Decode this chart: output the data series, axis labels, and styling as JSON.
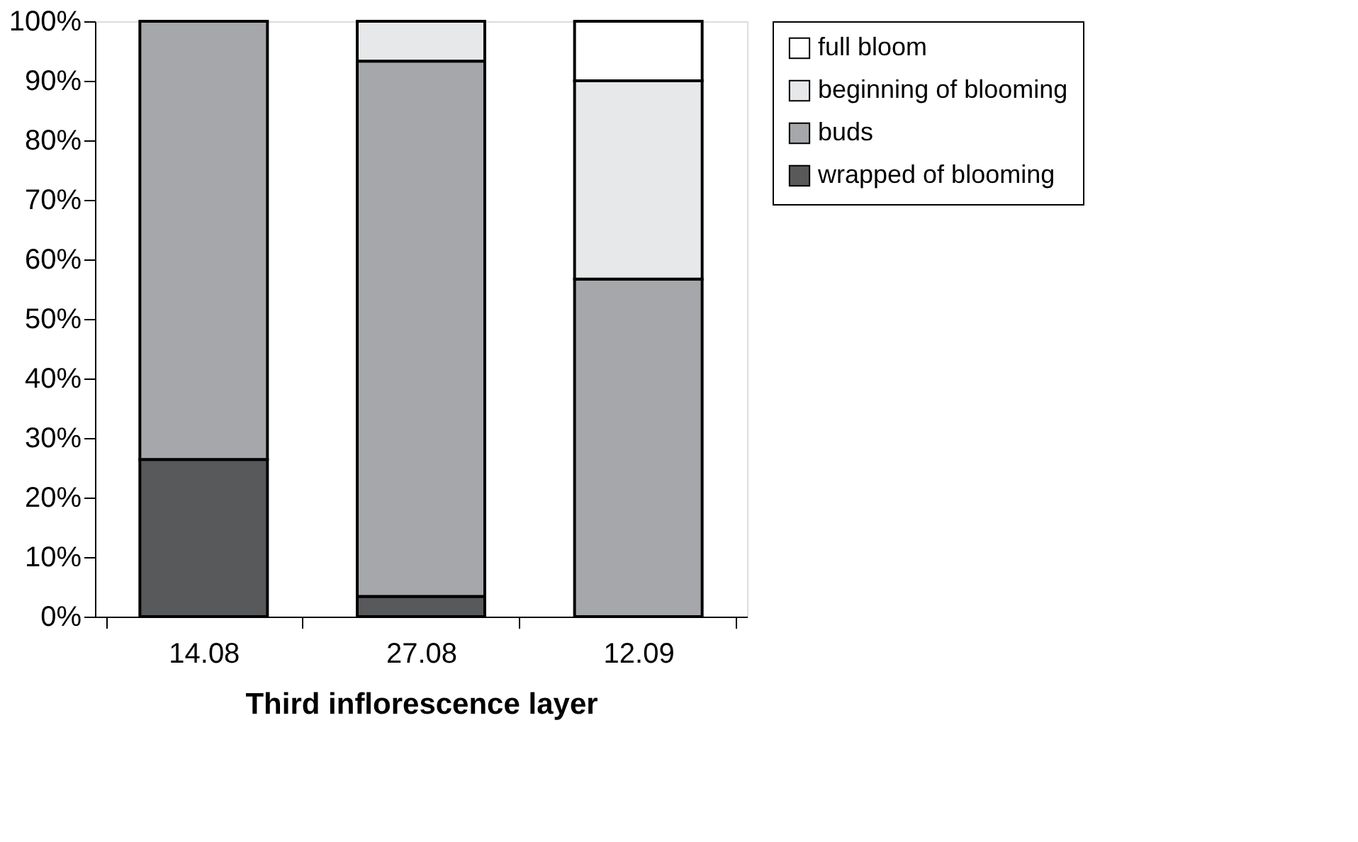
{
  "chart_data": {
    "type": "bar",
    "stacked": true,
    "xlabel": "Third inflorescence layer",
    "categories": [
      "14.08",
      "27.08",
      "12.09"
    ],
    "series": [
      {
        "name": "wrapped of blooming",
        "color": "#58595b",
        "values": [
          26.4,
          3.4,
          0
        ]
      },
      {
        "name": "buds",
        "color": "#a6a7aa",
        "values": [
          73.6,
          89.9,
          56.7
        ]
      },
      {
        "name": "beginning of blooming",
        "color": "#e7e8e9",
        "values": [
          0,
          6.7,
          33.3
        ]
      },
      {
        "name": "full bloom",
        "color": "#ffffff",
        "values": [
          0,
          0,
          10
        ]
      }
    ],
    "ylim": [
      0,
      100
    ],
    "yticks": [
      {
        "value": 0,
        "label": "0%"
      },
      {
        "value": 10,
        "label": "10%"
      },
      {
        "value": 20,
        "label": "20%"
      },
      {
        "value": 30,
        "label": "30%"
      },
      {
        "value": 40,
        "label": "40%"
      },
      {
        "value": 50,
        "label": "50%"
      },
      {
        "value": 60,
        "label": "60%"
      },
      {
        "value": 70,
        "label": "70%"
      },
      {
        "value": 80,
        "label": "80%"
      },
      {
        "value": 90,
        "label": "90%"
      },
      {
        "value": 100,
        "label": "100%"
      }
    ],
    "grid": false,
    "legend": "right"
  }
}
